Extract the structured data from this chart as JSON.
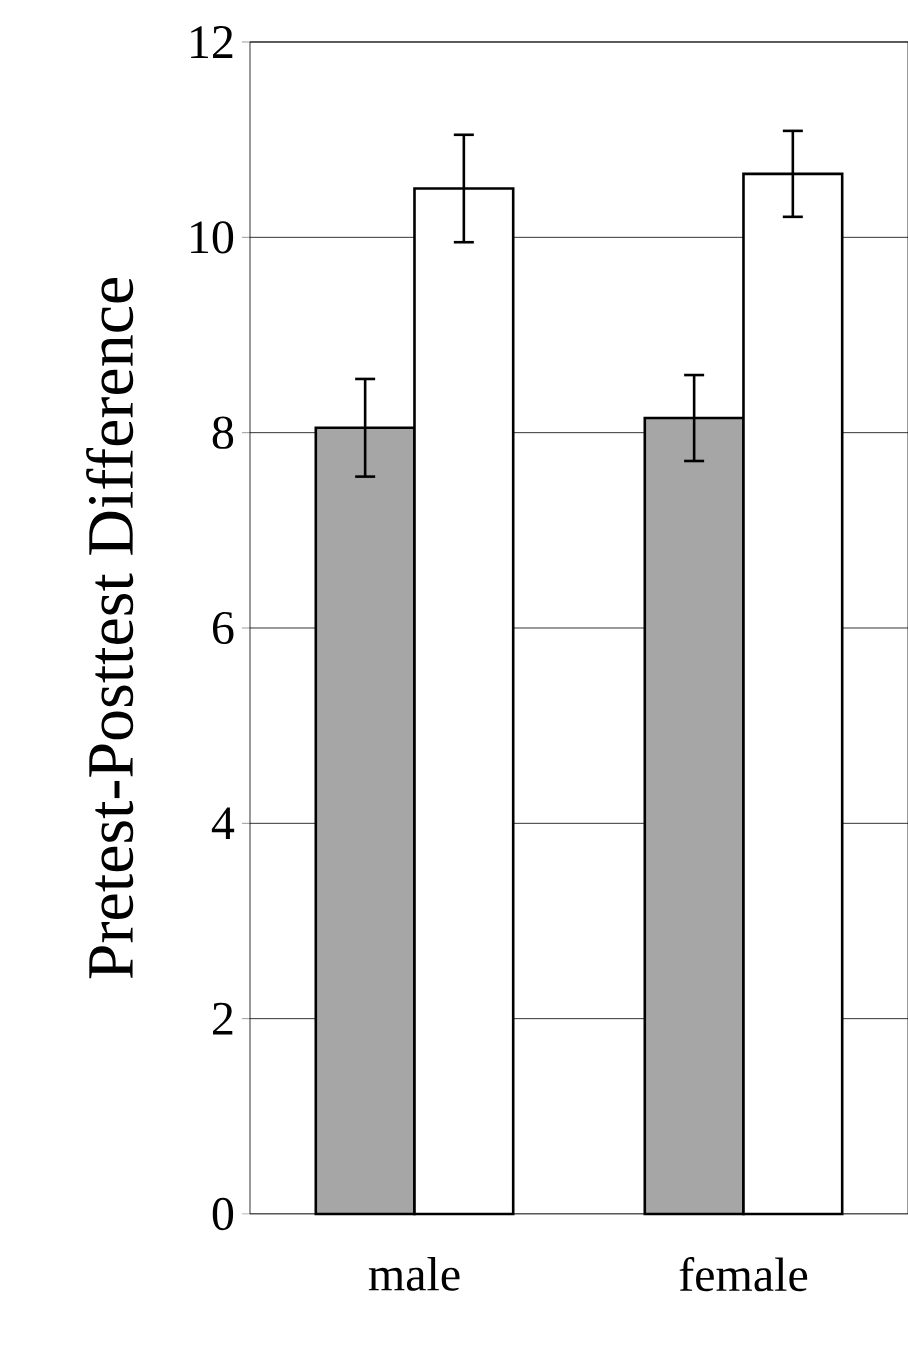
{
  "chart_data": {
    "type": "bar",
    "ylabel": "Pretest-Posttest Difference",
    "categories": [
      "male",
      "female"
    ],
    "series": [
      {
        "color": "#a6a6a6",
        "values": [
          8.05,
          8.15
        ],
        "errors": [
          0.5,
          0.44
        ]
      },
      {
        "color": "#ffffff",
        "values": [
          10.5,
          10.65
        ],
        "errors": [
          0.55,
          0.44
        ]
      }
    ],
    "ylim": [
      0,
      12
    ],
    "yticks": [
      0,
      2,
      4,
      6,
      8,
      10,
      12
    ],
    "grid": "y"
  }
}
